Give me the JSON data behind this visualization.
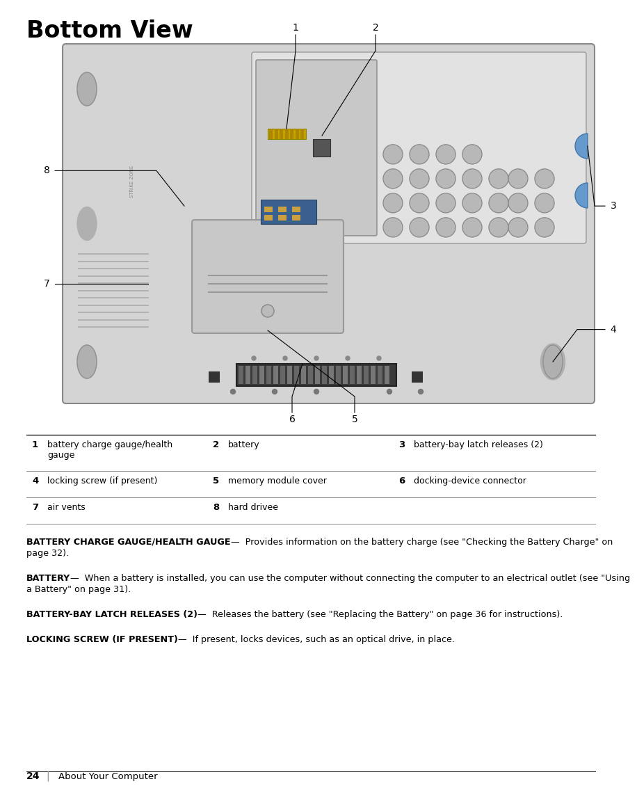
{
  "title": "Bottom View",
  "bg_color": "#ffffff",
  "title_fontsize": 24,
  "page_number": "24",
  "page_label": "About Your Computer",
  "table_rows": [
    {
      "num1": "1",
      "text1": "battery charge gauge/health\ngauge",
      "num2": "2",
      "text2": "battery",
      "num3": "3",
      "text3": "battery-bay latch releases (2)"
    },
    {
      "num1": "4",
      "text1": "locking screw (if present)",
      "num2": "5",
      "text2": "memory module cover",
      "num3": "6",
      "text3": "docking-device connector"
    },
    {
      "num1": "7",
      "text1": "air vents",
      "num2": "8",
      "text2": "hard drivee",
      "num3": "",
      "text3": ""
    }
  ],
  "descriptions": [
    {
      "bold": "BATTERY CHARGE GAUGE/HEALTH GAUGE",
      "rest": " —  Provides information on the battery charge (see \"Checking the Battery Charge\" on page 32)."
    },
    {
      "bold": "BATTERY",
      "rest": " —  When a battery is installed, you can use the computer without connecting the computer to an electrical outlet (see \"Using a Battery\" on page 31)."
    },
    {
      "bold": "BATTERY-BAY LATCH RELEASES (2)",
      "rest": " —  Releases the battery (see \"Replacing the Battery\" on page 36 for instructions)."
    },
    {
      "bold": "LOCKING SCREW (IF PRESENT)",
      "rest": " —  If present, locks devices, such as an optical drive, in place."
    }
  ]
}
